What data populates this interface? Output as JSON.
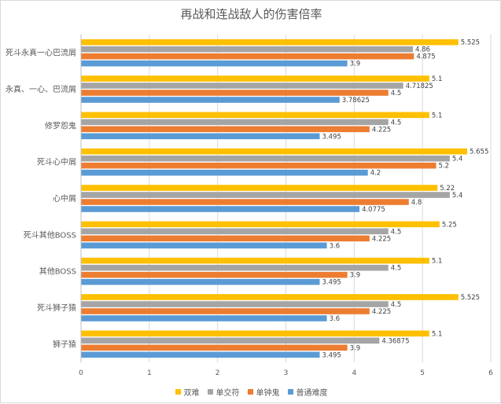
{
  "chart_data": {
    "type": "bar",
    "orientation": "horizontal",
    "title": "再战和连战敌人的伤害倍率",
    "categories": [
      "死斗永真一心巴流屑",
      "永真、一心、巴流屑",
      "修罗怨鬼",
      "死斗心中屑",
      "心中屑",
      "死斗其他BOSS",
      "其他BOSS",
      "死斗狮子猿",
      "狮子猿"
    ],
    "xlim": [
      0,
      6
    ],
    "xticks": [
      0,
      1,
      2,
      3,
      4,
      5,
      6
    ],
    "grid": "vertical",
    "legend_position": "bottom",
    "series": [
      {
        "name": "双难",
        "color": "#ffc000",
        "values": [
          5.525,
          5.1,
          5.1,
          5.655,
          5.22,
          5.25,
          5.1,
          5.525,
          5.1
        ],
        "labels": [
          "5.525",
          "5.1",
          "5.1",
          "5.655",
          "5.22",
          "5.25",
          "5.1",
          "5.525",
          "5.1"
        ]
      },
      {
        "name": "单交符",
        "color": "#a5a5a5",
        "values": [
          4.86,
          4.71825,
          4.5,
          5.4,
          5.4,
          4.5,
          4.5,
          4.5,
          4.36875
        ],
        "labels": [
          "4.86",
          "4.71825",
          "4.5",
          "5.4",
          "5.4",
          "4.5",
          "4.5",
          "4.5",
          "4.36875"
        ]
      },
      {
        "name": "单钟鬼",
        "color": "#ed7d31",
        "values": [
          4.875,
          4.5,
          4.225,
          5.2,
          4.8,
          4.225,
          3.9,
          4.225,
          3.9
        ],
        "labels": [
          "4.875",
          "4.5",
          "4.225",
          "5.2",
          "4.8",
          "4.225",
          "3.9",
          "4.225",
          "3.9"
        ]
      },
      {
        "name": "普通难度",
        "color": "#5b9bd5",
        "values": [
          3.9,
          3.78625,
          3.495,
          4.2,
          4.0775,
          3.6,
          3.495,
          3.6,
          3.495
        ],
        "labels": [
          "3.9",
          "3.78625",
          "3.495",
          "4.2",
          "4.0775",
          "3.6",
          "3.495",
          "3.6",
          "3.495"
        ]
      }
    ]
  }
}
